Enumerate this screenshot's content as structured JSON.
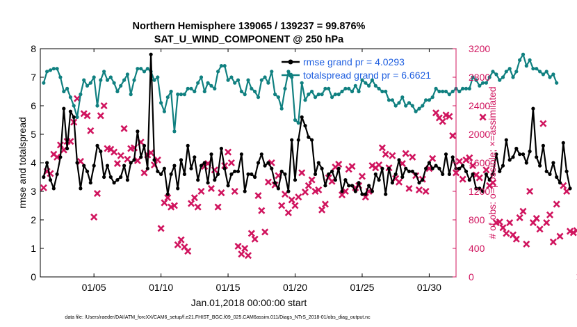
{
  "title": {
    "line1": "Northern Hemisphere 139065 / 139237 = 99.876%",
    "line2": "SAT_U_WIND_COMPONENT @ 250 hPa"
  },
  "axes": {
    "ylabel_left": "rmse and totalspread",
    "ylabel_right": "# of obs: o=possible; ×=assimilated",
    "xlabel": "Jan.01,2018 00:00:00 start",
    "x_ticks": [
      "01/05",
      "01/10",
      "01/15",
      "01/20",
      "01/25",
      "01/30"
    ],
    "y_ticks_left": [
      "0",
      "1",
      "2",
      "3",
      "4",
      "5",
      "6",
      "7",
      "8"
    ],
    "y_ticks_right": [
      "0",
      "400",
      "800",
      "1200",
      "1600",
      "2000",
      "2400",
      "2800",
      "3200"
    ]
  },
  "legend": {
    "rmse": "rmse grand pr = 4.0293",
    "spread": "totalspread grand pr = 6.6621"
  },
  "footnote": "data file: /Users/raeder/DAI/ATM_forcXX/CAM6_setup/f.e21.FHIST_BGC.f09_025.CAM6assim.011/Diags_NTrS_2018-01/obs_diag_output.nc",
  "colors": {
    "rmse": "#000000",
    "spread": "#108080",
    "obs": "#d0145e",
    "legend_text": "#1f5fe0"
  },
  "chart_data": {
    "type": "line",
    "x_start_day": 1.25,
    "x_step_days": 0.25,
    "xlim": [
      1.0,
      32.0
    ],
    "ylim_left": [
      0,
      8
    ],
    "ylim_right": [
      0,
      3200
    ],
    "grid": false,
    "legend_placement": "top-right",
    "series": [
      {
        "name": "rmse grand pr = 4.0293",
        "axis": "left",
        "marker": "circle",
        "values": [
          3.5,
          4.0,
          3.4,
          3.1,
          3.6,
          4.2,
          5.9,
          4.5,
          5.8,
          5.6,
          4.0,
          3.1,
          3.9,
          3.7,
          3.3,
          3.9,
          4.6,
          4.4,
          3.5,
          3.9,
          3.5,
          3.3,
          3.4,
          3.5,
          3.9,
          3.4,
          4.0,
          4.1,
          5.1,
          4.2,
          4.6,
          3.8,
          7.8,
          4.1,
          3.7,
          3.6,
          3.8,
          2.9,
          3.6,
          3.9,
          3.1,
          4.1,
          3.6,
          4.6,
          3.8,
          4.2,
          3.4,
          3.9,
          4.0,
          3.3,
          4.3,
          3.4,
          3.6,
          4.5,
          3.8,
          3.2,
          3.6,
          3.7,
          3.7,
          4.3,
          3.0,
          3.6,
          3.6,
          3.5,
          4.0,
          4.3,
          3.9,
          4.0,
          3.8,
          3.3,
          3.1,
          3.7,
          3.6,
          3.0,
          4.8,
          3.4,
          4.8,
          5.6,
          5.3,
          4.9,
          4.8,
          3.6,
          4.0,
          3.8,
          3.2,
          3.6,
          3.7,
          3.4,
          3.8,
          3.0,
          3.4,
          3.2,
          3.2,
          3.0,
          3.3,
          2.9,
          2.9,
          3.2,
          3.0,
          3.6,
          3.4,
          3.8,
          2.9,
          3.8,
          3.3,
          3.6,
          4.1,
          3.5,
          3.8,
          3.7,
          3.7,
          3.6,
          3.3,
          3.4,
          3.8,
          4.0,
          3.8,
          3.9,
          3.8,
          3.6,
          4.3,
          3.6,
          4.2,
          3.8,
          3.8,
          3.9,
          3.7,
          3.4,
          3.6,
          3.1,
          3.1,
          3.0,
          3.6,
          3.4,
          3.6,
          4.3,
          3.7,
          3.9,
          4.8,
          4.1,
          4.2,
          4.5,
          4.3,
          4.3,
          4.0,
          4.4,
          5.9,
          4.2,
          3.9,
          4.6,
          3.7,
          3.6,
          4.0,
          3.5,
          3.3,
          4.7,
          3.7,
          3.1
        ]
      },
      {
        "name": "totalspread grand pr = 6.6621",
        "axis": "left",
        "marker": "circle",
        "values": [
          6.8,
          7.2,
          7.25,
          7.3,
          7.3,
          7.0,
          6.5,
          6.6,
          6.3,
          6.0,
          5.6,
          6.4,
          6.9,
          6.7,
          6.8,
          7.0,
          6.0,
          6.9,
          7.2,
          6.9,
          7.0,
          6.8,
          6.5,
          6.7,
          6.9,
          7.1,
          6.4,
          6.9,
          7.3,
          7.3,
          7.2,
          7.3,
          7.2,
          6.9,
          7.0,
          6.1,
          5.8,
          6.3,
          6.5,
          5.1,
          6.4,
          6.4,
          6.4,
          6.6,
          6.6,
          6.5,
          6.8,
          7.0,
          6.5,
          6.8,
          6.7,
          6.6,
          7.2,
          7.4,
          7.4,
          6.9,
          7.0,
          6.8,
          6.9,
          6.5,
          6.4,
          6.9,
          6.6,
          6.5,
          6.3,
          6.9,
          7.0,
          6.8,
          7.2,
          6.4,
          6.3,
          5.9,
          6.6,
          7.2,
          7.0,
          5.5,
          5.4,
          6.8,
          6.2,
          6.4,
          6.5,
          6.3,
          6.4,
          6.4,
          6.6,
          6.6,
          6.3,
          6.4,
          6.4,
          6.5,
          6.6,
          6.6,
          6.5,
          6.7,
          6.5,
          6.9,
          6.8,
          6.7,
          6.9,
          6.7,
          6.6,
          6.5,
          6.5,
          6.2,
          6.2,
          6.0,
          6.1,
          6.3,
          6.0,
          6.1,
          6.0,
          5.8,
          5.9,
          6.0,
          6.2,
          6.2,
          6.3,
          6.6,
          6.5,
          6.5,
          6.5,
          6.4,
          6.5,
          6.6,
          6.5,
          6.6,
          6.6,
          6.6,
          7.0,
          6.9,
          6.7,
          6.8,
          6.8,
          7.0,
          7.2,
          7.1,
          6.9,
          7.0,
          7.2,
          7.3,
          7.0,
          7.2,
          7.6,
          7.8,
          7.4,
          7.6,
          7.3,
          7.3,
          7.2,
          7.1,
          7.2,
          7.0,
          7.1,
          6.8
        ]
      }
    ],
    "obs": {
      "name": "# of obs assimilated",
      "axis": "right",
      "marker": "x",
      "values": [
        1250,
        1480,
        1450,
        1720,
        1680,
        1850,
        1780,
        1900,
        1900,
        2170,
        2500,
        1620,
        2290,
        2260,
        2050,
        840,
        1170,
        2260,
        2400,
        1800,
        1790,
        1750,
        1590,
        1700,
        2080,
        1650,
        1800,
        1810,
        1630,
        1890,
        1460,
        1710,
        1740,
        1570,
        1640,
        680,
        1040,
        1110,
        980,
        1000,
        450,
        520,
        420,
        360,
        1030,
        1110,
        980,
        1200,
        1550,
        1590,
        1240,
        1500,
        980,
        1180,
        1560,
        1750,
        1600,
        1200,
        430,
        320,
        400,
        300,
        610,
        530,
        1140,
        930,
        630,
        1330,
        1600,
        1290,
        1420,
        1000,
        1160,
        900,
        1080,
        1000,
        1120,
        1460,
        1190,
        1280,
        1360,
        1200,
        1220,
        940,
        1020,
        1390,
        1340,
        1540,
        1580,
        1150,
        1200,
        1510,
        1550,
        1250,
        1280,
        1410,
        1120,
        1200,
        1560,
        1530,
        1570,
        1810,
        1720,
        1530,
        1700,
        1380,
        1330,
        1590,
        1730,
        1240,
        1680,
        1420,
        1220,
        1370,
        1200,
        1520,
        1660,
        2300,
        2230,
        2180,
        2270,
        2250,
        1980,
        1460,
        1620,
        1370,
        1640,
        1670,
        1560,
        1430,
        1390,
        2240,
        1500,
        1280,
        1320,
        760,
        770,
        690,
        610,
        760,
        590,
        530,
        830,
        920,
        460,
        1200,
        760,
        820,
        670,
        2150,
        760,
        870,
        490,
        1020,
        570,
        1280,
        1200,
        640,
        620,
        650,
        0
      ]
    }
  }
}
